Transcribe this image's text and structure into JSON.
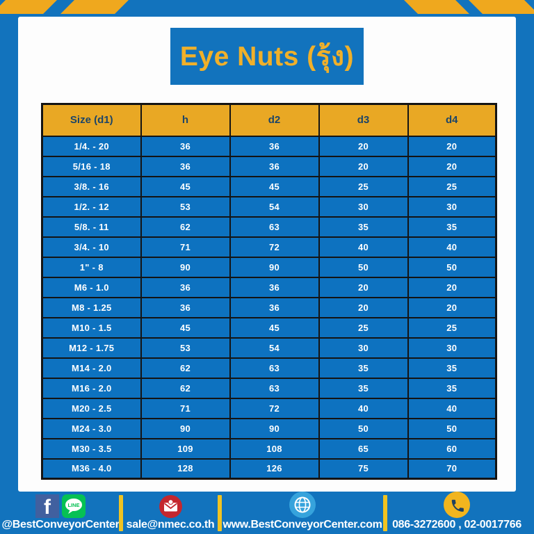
{
  "colors": {
    "bg": "#1273BD",
    "card": "#FDFDFD",
    "stripe_yellow": "#EFA81E",
    "title_text": "#F0B02A",
    "title_box": "#1273BD",
    "table_header_bg": "#E9A824",
    "table_header_text": "#1C4568",
    "row_bg": "#0D72C0",
    "row_text": "#FFFFFF",
    "table_border": "#141414",
    "divider": "#F0C322",
    "facebook": "#41609F",
    "line_green": "#06C154",
    "email_red": "#C4272E",
    "globe_blue": "#36A3DC",
    "phone_yellow": "#F2B51E",
    "phone_glyph": "#20405E"
  },
  "header": {
    "title": "Eye Nuts (รุ้ง)"
  },
  "table": {
    "columns": [
      "Size (d1)",
      "h",
      "d2",
      "d3",
      "d4"
    ],
    "rows": [
      [
        "1/4. - 20",
        "36",
        "36",
        "20",
        "20"
      ],
      [
        "5/16 - 18",
        "36",
        "36",
        "20",
        "20"
      ],
      [
        "3/8. - 16",
        "45",
        "45",
        "25",
        "25"
      ],
      [
        "1/2. - 12",
        "53",
        "54",
        "30",
        "30"
      ],
      [
        "5/8. - 11",
        "62",
        "63",
        "35",
        "35"
      ],
      [
        "3/4. - 10",
        "71",
        "72",
        "40",
        "40"
      ],
      [
        "1\" - 8",
        "90",
        "90",
        "50",
        "50"
      ],
      [
        "M6 - 1.0",
        "36",
        "36",
        "20",
        "20"
      ],
      [
        "M8 - 1.25",
        "36",
        "36",
        "20",
        "20"
      ],
      [
        "M10 - 1.5",
        "45",
        "45",
        "25",
        "25"
      ],
      [
        "M12 - 1.75",
        "53",
        "54",
        "30",
        "30"
      ],
      [
        "M14 - 2.0",
        "62",
        "63",
        "35",
        "35"
      ],
      [
        "M16 - 2.0",
        "62",
        "63",
        "35",
        "35"
      ],
      [
        "M20 - 2.5",
        "71",
        "72",
        "40",
        "40"
      ],
      [
        "M24 - 3.0",
        "90",
        "90",
        "50",
        "50"
      ],
      [
        "M30 - 3.5",
        "109",
        "108",
        "65",
        "60"
      ],
      [
        "M36 - 4.0",
        "128",
        "126",
        "75",
        "70"
      ]
    ]
  },
  "footer": {
    "social": {
      "facebook_glyph": "f",
      "line_text": "LINE",
      "label": "@BestConveyorCenter"
    },
    "email": {
      "label": "sale@nmec.co.th"
    },
    "website": {
      "label": "www.BestConveyorCenter.com"
    },
    "phone": {
      "label": "086-3272600 , 02-0017766"
    }
  }
}
